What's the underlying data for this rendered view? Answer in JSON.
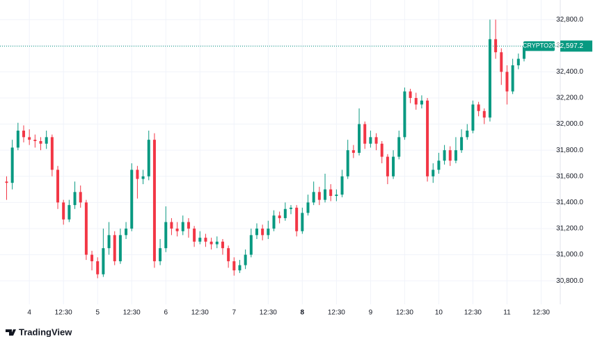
{
  "chart_data": {
    "type": "candlestick",
    "symbol": "CRYPTO20",
    "last_label": "32,597.2",
    "brand": "TradingView",
    "up_color": "#089981",
    "down_color": "#f23645",
    "grid": true,
    "ylim": [
      30620,
      32950
    ],
    "yticks": [
      {
        "value": 30800,
        "label": "30,800.0"
      },
      {
        "value": 31000,
        "label": "31,000.0"
      },
      {
        "value": 31200,
        "label": "31,200.0"
      },
      {
        "value": 31400,
        "label": "31,400.0"
      },
      {
        "value": 31600,
        "label": "31,600.0"
      },
      {
        "value": 31800,
        "label": "31,800.0"
      },
      {
        "value": 32000,
        "label": "32,000.0"
      },
      {
        "value": 32200,
        "label": "32,200.0"
      },
      {
        "value": 32400,
        "label": "32,400.0"
      },
      {
        "value": 32600,
        "label": "32,600.0"
      },
      {
        "value": 32800,
        "label": "32,800.0"
      }
    ],
    "categories": [
      null,
      null,
      null,
      null,
      "4",
      null,
      null,
      null,
      null,
      null,
      "12:30",
      null,
      null,
      null,
      null,
      null,
      "5",
      null,
      null,
      null,
      null,
      null,
      "12:30",
      null,
      null,
      null,
      null,
      null,
      "6",
      null,
      null,
      null,
      null,
      null,
      "12:30",
      null,
      null,
      null,
      null,
      null,
      "7",
      null,
      null,
      null,
      null,
      null,
      "12:30",
      null,
      null,
      null,
      null,
      null,
      "8",
      null,
      null,
      null,
      null,
      null,
      "12:30",
      null,
      null,
      null,
      null,
      null,
      "9",
      null,
      null,
      null,
      null,
      null,
      "12:30",
      null,
      null,
      null,
      null,
      null,
      "10",
      null,
      null,
      null,
      null,
      null,
      "12:30",
      null,
      null,
      null,
      null,
      null,
      "11",
      null,
      null,
      null,
      null,
      null,
      "12:30"
    ],
    "open": [
      31560,
      31550,
      31820,
      31950,
      31900,
      31880,
      31870,
      31850,
      31900,
      31650,
      31400,
      31270,
      31380,
      31480,
      31400,
      31000,
      30950,
      30850,
      31050,
      31150,
      30950,
      31150,
      31200,
      31650,
      31580,
      31600,
      31880,
      30950,
      31050,
      31250,
      31200,
      31180,
      31250,
      31200,
      31100,
      31130,
      31100,
      31080,
      31100,
      31050,
      30950,
      30880,
      30920,
      31000,
      31150,
      31200,
      31150,
      31200,
      31300,
      31280,
      31350,
      31360,
      31180,
      31320,
      31400,
      31480,
      31420,
      31500,
      31450,
      31460,
      31600,
      31800,
      31780,
      32000,
      31850,
      31900,
      31850,
      31750,
      31600,
      31750,
      31900,
      32250,
      32200,
      32150,
      32180,
      31600,
      31650,
      31720,
      31800,
      31720,
      31800,
      31900,
      31950,
      32150,
      32100,
      32050,
      32650,
      32550,
      32400,
      32250,
      32450,
      32500,
      null,
      null,
      null
    ],
    "high": [
      31600,
      31880,
      32010,
      31990,
      31960,
      31920,
      31900,
      31950,
      31920,
      31680,
      31420,
      31420,
      31560,
      31530,
      31420,
      31030,
      30980,
      31200,
      31250,
      31180,
      31200,
      31250,
      31700,
      31680,
      31650,
      31950,
      31930,
      31120,
      31370,
      31280,
      31250,
      31300,
      31280,
      31220,
      31180,
      31160,
      31130,
      31140,
      31120,
      31070,
      30980,
      30960,
      31040,
      31200,
      31240,
      31230,
      31260,
      31340,
      31330,
      31400,
      31380,
      31380,
      31360,
      31460,
      31560,
      31520,
      31620,
      31540,
      31500,
      31650,
      31880,
      31840,
      32120,
      32020,
      31950,
      31930,
      31870,
      31770,
      31800,
      31950,
      32280,
      32270,
      32240,
      32220,
      32200,
      31700,
      31780,
      31840,
      31830,
      31900,
      31960,
      32000,
      32180,
      32170,
      32120,
      32800,
      32800,
      32580,
      32450,
      32500,
      32540,
      32620,
      null,
      null,
      null
    ],
    "low": [
      31420,
      31500,
      31800,
      31860,
      31840,
      31820,
      31800,
      31810,
      31600,
      31350,
      31230,
      31250,
      31350,
      31360,
      30960,
      30880,
      30820,
      30830,
      31000,
      30920,
      30930,
      31120,
      31180,
      31430,
      31540,
      31570,
      30900,
      30920,
      31020,
      31150,
      31140,
      31150,
      31130,
      31060,
      31080,
      31060,
      31040,
      31050,
      31000,
      30900,
      30840,
      30860,
      30890,
      30980,
      31120,
      31110,
      31120,
      31180,
      31240,
      31260,
      31310,
      31140,
      31160,
      31300,
      31380,
      31380,
      31400,
      31410,
      31410,
      31440,
      31580,
      31740,
      31760,
      31810,
      31820,
      31800,
      31700,
      31540,
      31580,
      31730,
      31880,
      32160,
      32110,
      32120,
      31560,
      31550,
      31620,
      31690,
      31680,
      31700,
      31780,
      31880,
      31930,
      32060,
      32000,
      32020,
      32500,
      32300,
      32150,
      32230,
      32420,
      32480,
      null,
      null,
      null
    ],
    "close": [
      31550,
      31820,
      31950,
      31900,
      31880,
      31870,
      31850,
      31900,
      31650,
      31400,
      31270,
      31380,
      31480,
      31400,
      31000,
      30950,
      30850,
      31050,
      31150,
      30950,
      31150,
      31200,
      31650,
      31580,
      31600,
      31880,
      30950,
      31050,
      31250,
      31200,
      31180,
      31250,
      31200,
      31100,
      31130,
      31100,
      31080,
      31100,
      31050,
      30950,
      30880,
      30920,
      31000,
      31150,
      31200,
      31150,
      31200,
      31300,
      31280,
      31350,
      31360,
      31180,
      31320,
      31400,
      31480,
      31420,
      31500,
      31450,
      31460,
      31600,
      31800,
      31780,
      32000,
      31850,
      31900,
      31850,
      31750,
      31600,
      31750,
      31900,
      32250,
      32200,
      32150,
      32180,
      31600,
      31650,
      31720,
      31800,
      31720,
      31800,
      31900,
      31950,
      32150,
      32100,
      32050,
      32650,
      32550,
      32400,
      32250,
      32450,
      32500,
      32597.2,
      null,
      null,
      null
    ]
  }
}
